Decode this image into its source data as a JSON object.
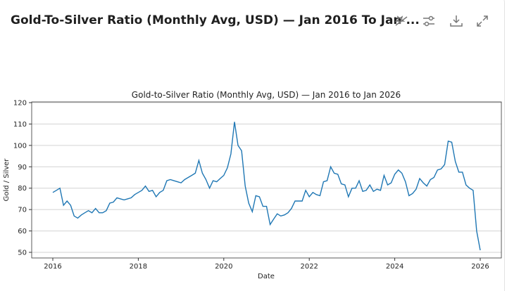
{
  "header": {
    "title": "Gold-To-Silver Ratio (Monthly Avg, USD) — Jan 2016 To Jan ...",
    "icons": [
      "magic-off-icon",
      "sliders-icon",
      "download-icon",
      "expand-icon"
    ]
  },
  "chart_data": {
    "type": "line",
    "title": "Gold-to-Silver Ratio (Monthly Avg, USD) — Jan 2016 to Jan 2026",
    "xlabel": "Date",
    "ylabel": "Gold / Silver",
    "ylim": [
      50,
      120
    ],
    "xlim": [
      2016,
      2026
    ],
    "grid": "horizontal",
    "yticks": [
      50,
      60,
      70,
      80,
      90,
      100,
      110,
      120
    ],
    "xticks": [
      "2016",
      "2018",
      "2020",
      "2022",
      "2024",
      "2026"
    ],
    "start": "2016-01",
    "frequency": "monthly",
    "series": [
      {
        "name": "Gold / Silver",
        "color": "#1f77b4",
        "values": [
          78,
          79,
          80,
          72,
          74,
          72,
          67,
          66,
          67.5,
          68.5,
          69.5,
          68.5,
          70.5,
          68.5,
          68.5,
          69.5,
          73,
          73.5,
          75.5,
          75,
          74.5,
          75,
          75.5,
          77,
          78,
          79,
          81,
          78.5,
          79,
          76,
          78,
          79,
          83.5,
          84,
          83.5,
          83,
          82.5,
          84,
          85,
          86,
          87,
          93,
          87,
          84,
          80,
          83.5,
          83,
          84.5,
          86,
          89.5,
          96,
          111,
          100,
          97.5,
          81,
          73,
          69,
          76.5,
          76,
          71.5,
          71.5,
          63,
          65.5,
          68,
          67,
          67.5,
          68.5,
          70.5,
          74,
          74,
          74,
          79,
          76,
          78,
          77,
          76.5,
          83,
          83.5,
          90,
          87,
          86.5,
          82,
          81.5,
          76,
          80,
          80,
          83.5,
          78.5,
          79,
          81.5,
          78.5,
          79.5,
          79,
          86,
          81.5,
          82.5,
          86.5,
          88.5,
          87,
          83,
          76.5,
          77.5,
          79.5,
          84.5,
          82.5,
          81,
          84,
          85,
          88.5,
          89,
          91,
          102,
          101.5,
          92.5,
          87.5,
          87.5,
          81.5,
          80,
          79,
          60,
          51
        ]
      }
    ]
  }
}
